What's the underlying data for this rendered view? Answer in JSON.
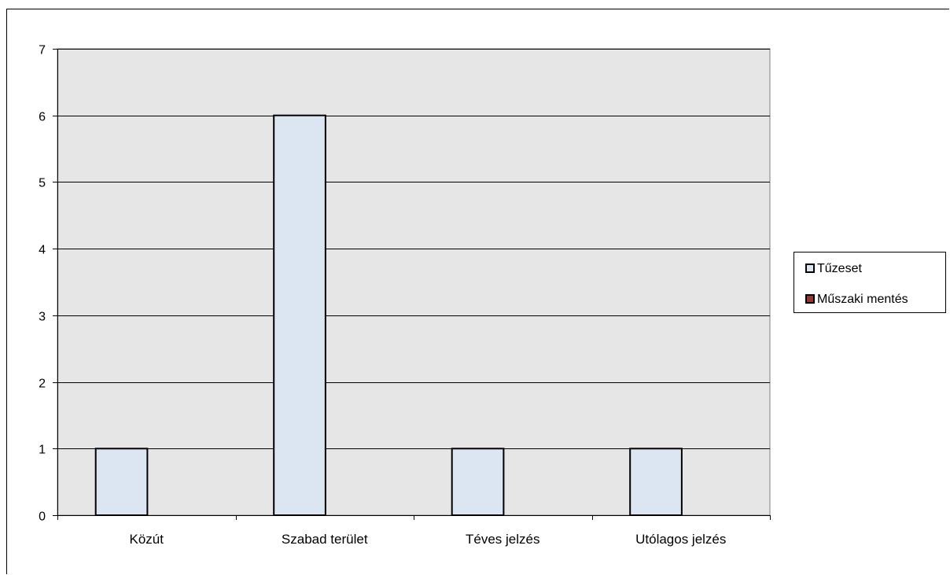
{
  "chart_data": {
    "type": "bar",
    "categories": [
      "Közút",
      "Szabad terület",
      "Téves jelzés",
      "Utólagos jelzés"
    ],
    "series": [
      {
        "name": "Tűzeset",
        "values": [
          1,
          6,
          1,
          1
        ],
        "color": "#dce6f2"
      },
      {
        "name": "Műszaki mentés",
        "values": [
          0,
          0,
          0,
          0
        ],
        "color": "#953735"
      }
    ],
    "title": "",
    "xlabel": "",
    "ylabel": "",
    "ylim": [
      0,
      7
    ],
    "yticks": [
      "0",
      "1",
      "2",
      "3",
      "4",
      "5",
      "6",
      "7"
    ],
    "grid": true,
    "legend_position": "right"
  },
  "colors": {
    "plot_background": "#e6e6e6",
    "gridline": "#000000",
    "bar_border": "#000000"
  }
}
